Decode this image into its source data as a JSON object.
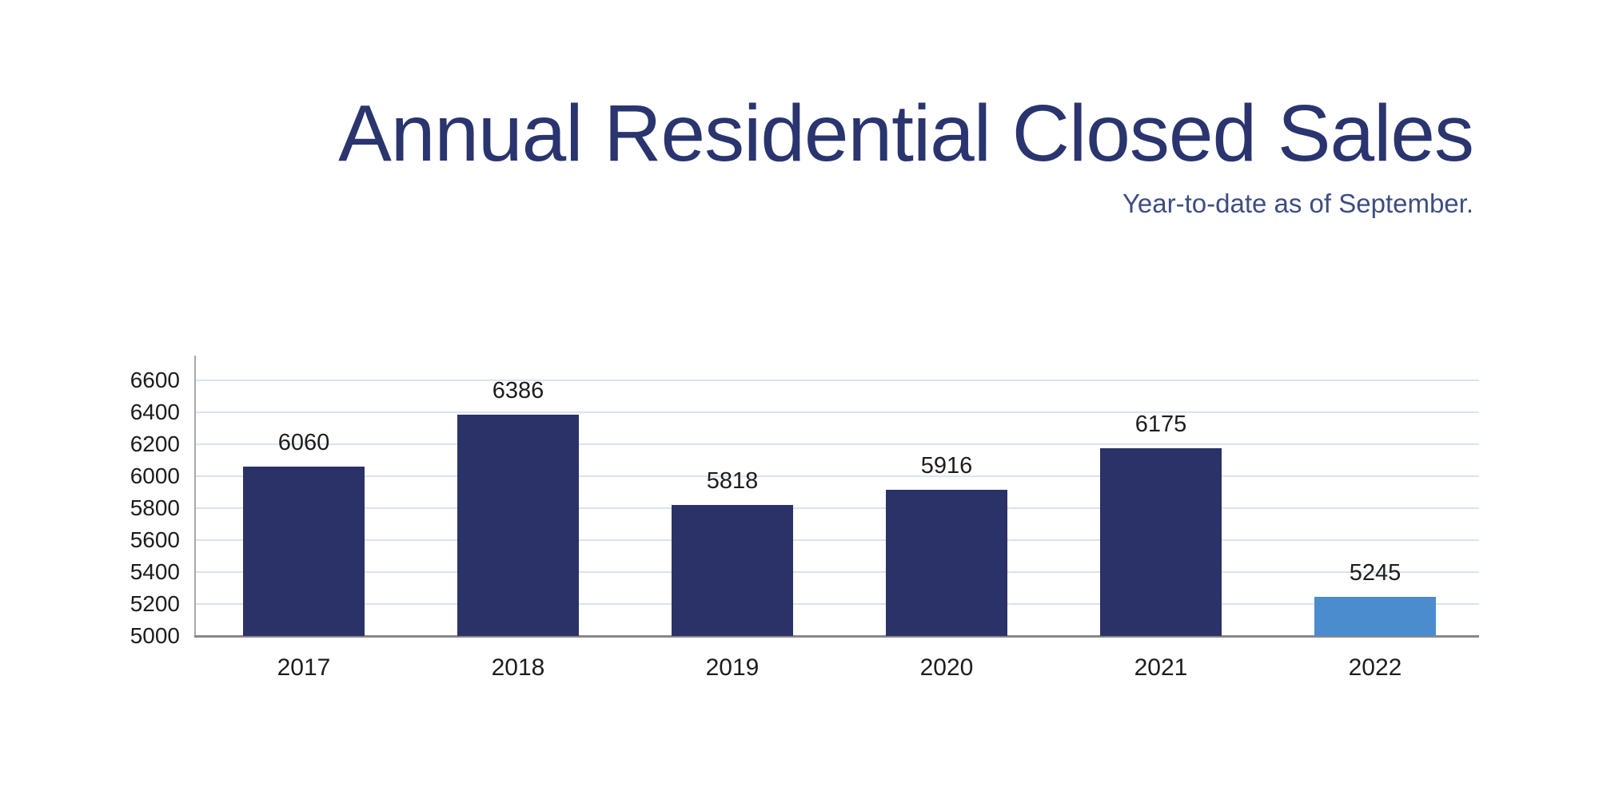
{
  "page": {
    "title": "Annual Residential Closed Sales",
    "subtitle": "Year-to-date as of September."
  },
  "colors": {
    "title_text": "#2a346e",
    "subtitle_text": "#3e4d82",
    "bar_default": "#2b3268",
    "bar_highlight": "#4a8ccd",
    "gridline": "#dce3ef",
    "y_axis_line": "#a9a9a9",
    "x_axis_line": "#888888",
    "tick_text": "#1d1d1d"
  },
  "chart_data": {
    "type": "bar",
    "title": "Annual Residential Closed Sales",
    "subtitle": "Year-to-date as of September.",
    "categories": [
      "2017",
      "2018",
      "2019",
      "2020",
      "2021",
      "2022"
    ],
    "values": [
      6060,
      6386,
      5818,
      5916,
      6175,
      5245
    ],
    "data_labels": [
      6060,
      6386,
      5818,
      5916,
      6175,
      5245
    ],
    "highlighted_category": "2022",
    "xlabel": "",
    "ylabel": "",
    "ylim": [
      5000,
      6750
    ],
    "yticks": [
      5000,
      5200,
      5400,
      5600,
      5800,
      6000,
      6200,
      6400,
      6600
    ],
    "grid": "horizontal",
    "legend": "none"
  }
}
